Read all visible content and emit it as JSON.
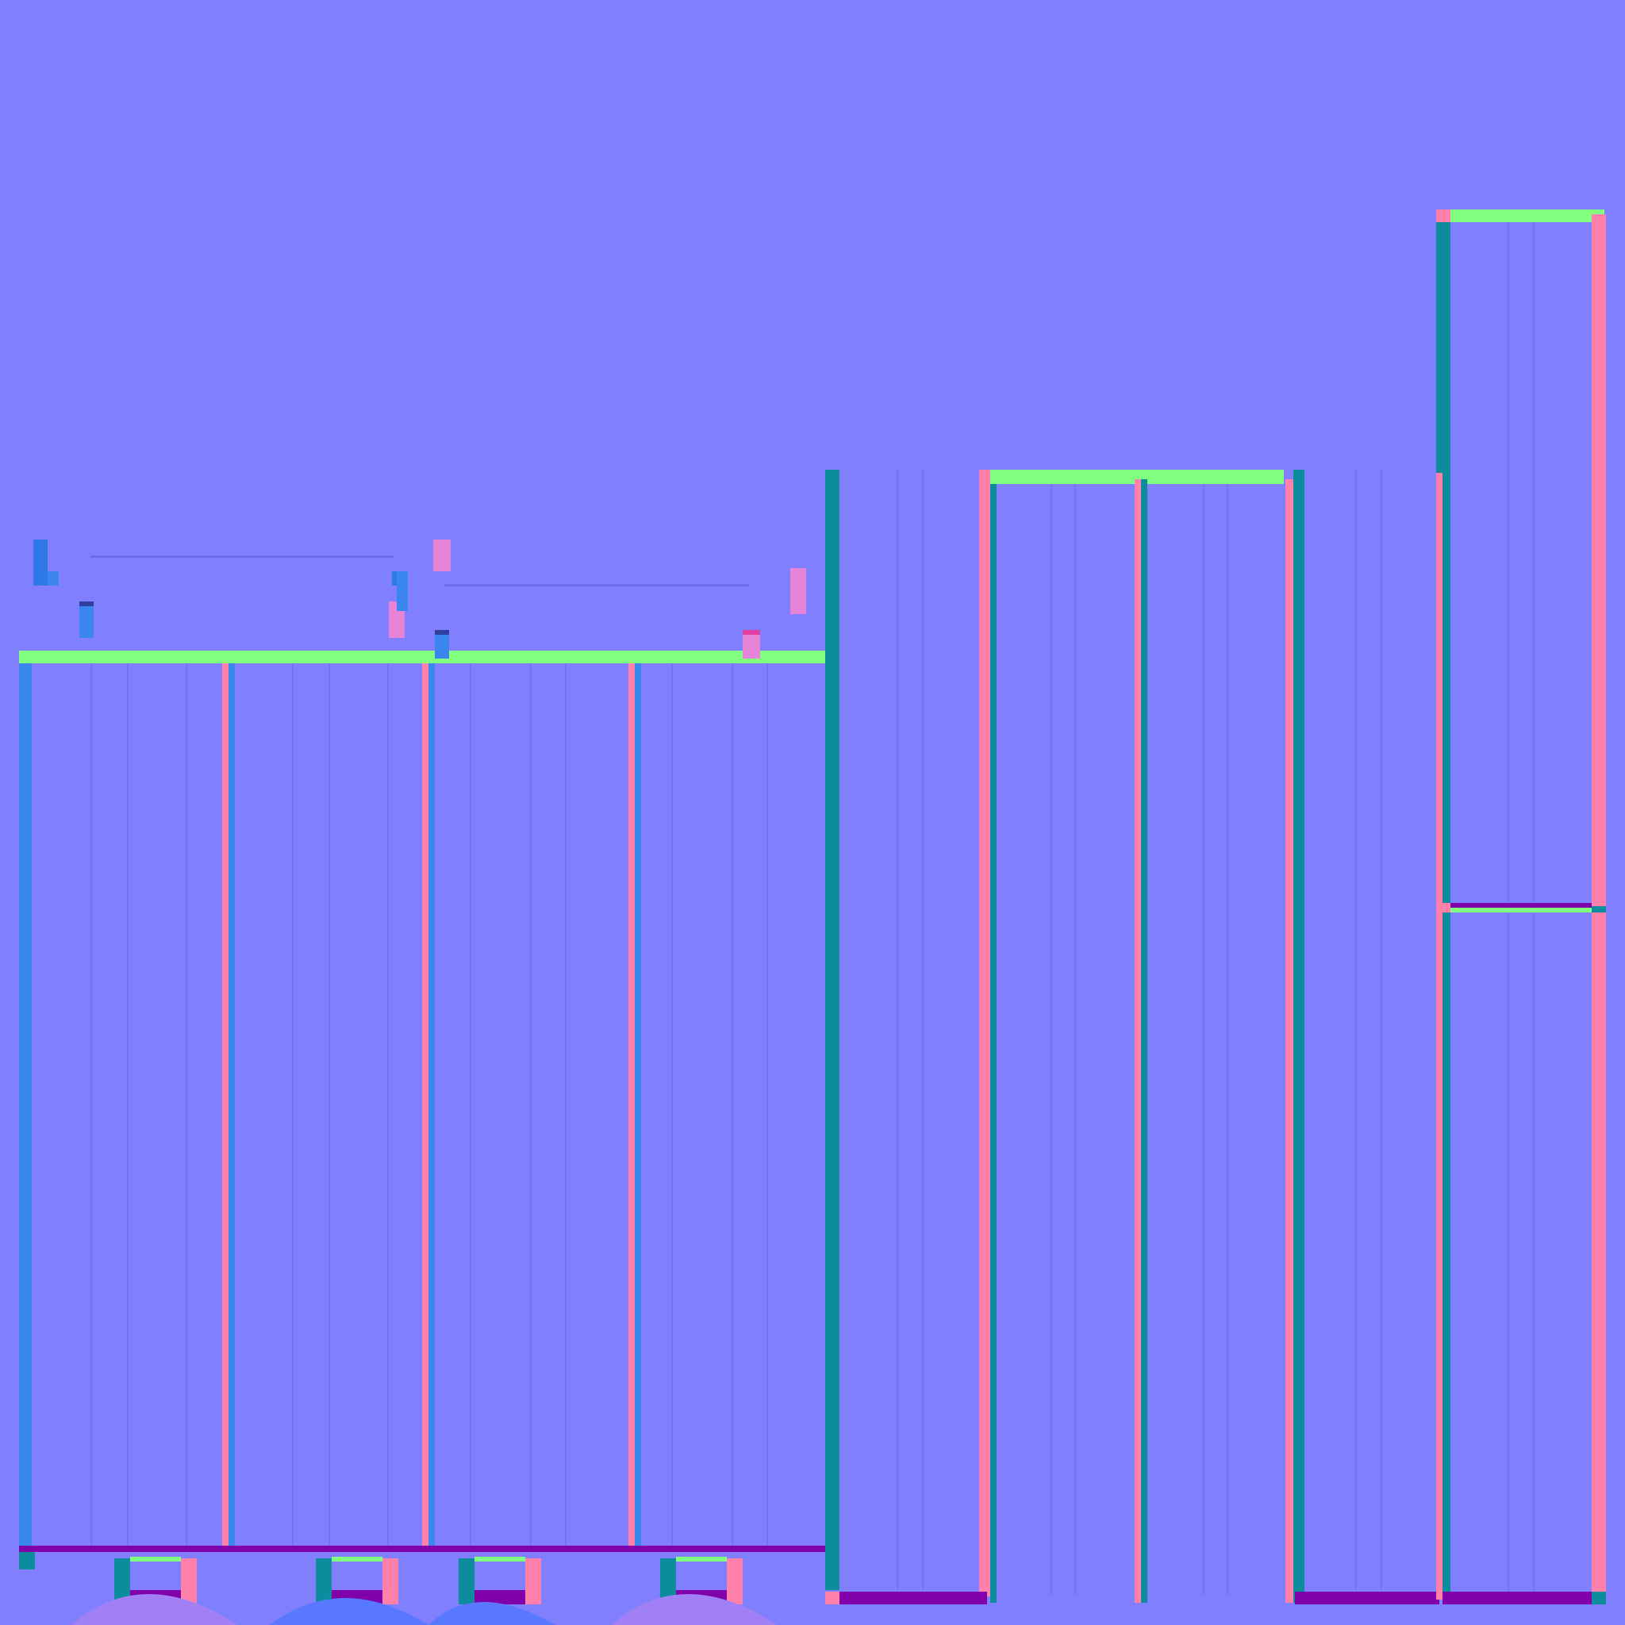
{
  "texture": {
    "kind": "normal-map",
    "base_color": "#8080ff",
    "colors": {
      "top_face": "#80ff80",
      "left_face_light": "#3a86ee",
      "left_face_dark": "#0c8c9c",
      "right_face": "#ff80aa",
      "bottom_face": "#8000aa",
      "groove": "#7474f0",
      "pink_lip": "#e884d8",
      "blue_lip": "#2f78e8",
      "bottom_blob_blue": "#5878ff",
      "bottom_blob_purple": "#a080f4"
    }
  }
}
